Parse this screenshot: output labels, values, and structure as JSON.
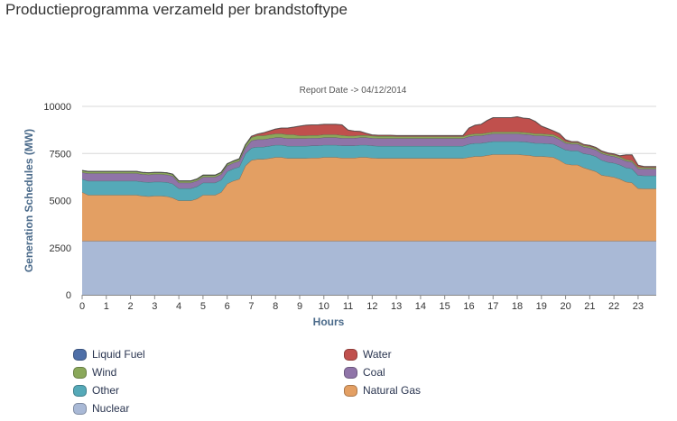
{
  "page": {
    "title": "Productieprogramma verzameld per brandstoftype"
  },
  "chart_data": {
    "type": "area",
    "stacked": true,
    "subtitle": "Report Date -> 04/12/2014",
    "xlabel": "Hours",
    "ylabel": "Generation Schedules (MW)",
    "ylim": [
      0,
      10000
    ],
    "xlim": [
      0,
      23.75
    ],
    "yticks": [
      0,
      2500,
      5000,
      7500,
      10000
    ],
    "ytick_labels": [
      "0",
      "2500",
      "5000",
      "7500",
      "10000"
    ],
    "xticks": [
      0,
      1,
      2,
      3,
      4,
      5,
      6,
      7,
      8,
      9,
      10,
      11,
      12,
      13,
      14,
      15,
      16,
      17,
      18,
      19,
      20,
      21,
      22,
      23
    ],
    "xtick_labels": [
      "0",
      "1",
      "2",
      "3",
      "4",
      "5",
      "6",
      "7",
      "8",
      "9",
      "10",
      "11",
      "12",
      "13",
      "14",
      "15",
      "16",
      "17",
      "18",
      "19",
      "20",
      "21",
      "22",
      "23"
    ],
    "x": [
      0,
      0.25,
      0.5,
      0.75,
      1,
      1.25,
      1.5,
      1.75,
      2,
      2.25,
      2.5,
      2.75,
      3,
      3.25,
      3.5,
      3.75,
      4,
      4.25,
      4.5,
      4.75,
      5,
      5.25,
      5.5,
      5.75,
      6,
      6.25,
      6.5,
      6.75,
      7,
      7.25,
      7.5,
      7.75,
      8,
      8.25,
      8.5,
      8.75,
      9,
      9.25,
      9.5,
      9.75,
      10,
      10.25,
      10.5,
      10.75,
      11,
      11.25,
      11.5,
      11.75,
      12,
      12.25,
      12.5,
      12.75,
      13,
      13.25,
      13.5,
      13.75,
      14,
      14.25,
      14.5,
      14.75,
      15,
      15.25,
      15.5,
      15.75,
      16,
      16.25,
      16.5,
      16.75,
      17,
      17.25,
      17.5,
      17.75,
      18,
      18.25,
      18.5,
      18.75,
      19,
      19.25,
      19.5,
      19.75,
      20,
      20.25,
      20.5,
      20.75,
      21,
      21.25,
      21.5,
      21.75,
      22,
      22.25,
      22.5,
      22.75,
      23,
      23.25,
      23.5,
      23.75
    ],
    "series": [
      {
        "name": "Nuclear",
        "color": "#a9b9d6",
        "values": [
          2850,
          2850,
          2850,
          2850,
          2850,
          2850,
          2850,
          2850,
          2850,
          2850,
          2850,
          2850,
          2850,
          2850,
          2850,
          2850,
          2850,
          2850,
          2850,
          2850,
          2850,
          2850,
          2850,
          2850,
          2850,
          2850,
          2850,
          2850,
          2850,
          2850,
          2850,
          2850,
          2850,
          2850,
          2850,
          2850,
          2850,
          2850,
          2850,
          2850,
          2850,
          2850,
          2850,
          2850,
          2850,
          2850,
          2850,
          2850,
          2850,
          2850,
          2850,
          2850,
          2850,
          2850,
          2850,
          2850,
          2850,
          2850,
          2850,
          2850,
          2850,
          2850,
          2850,
          2850,
          2850,
          2850,
          2850,
          2850,
          2850,
          2850,
          2850,
          2850,
          2850,
          2850,
          2850,
          2850,
          2850,
          2850,
          2850,
          2850,
          2850,
          2850,
          2850,
          2850,
          2850,
          2850,
          2850,
          2850,
          2850,
          2850,
          2850,
          2850,
          2850,
          2850,
          2850,
          2850
        ]
      },
      {
        "name": "Natural Gas",
        "color": "#e39f63",
        "values": [
          2600,
          2450,
          2450,
          2450,
          2450,
          2450,
          2450,
          2450,
          2450,
          2450,
          2400,
          2380,
          2400,
          2400,
          2380,
          2300,
          2150,
          2150,
          2150,
          2250,
          2450,
          2450,
          2450,
          2600,
          3050,
          3200,
          3300,
          4000,
          4300,
          4350,
          4350,
          4400,
          4450,
          4450,
          4400,
          4400,
          4400,
          4400,
          4420,
          4420,
          4450,
          4450,
          4450,
          4420,
          4420,
          4420,
          4450,
          4450,
          4420,
          4400,
          4400,
          4400,
          4400,
          4400,
          4400,
          4400,
          4400,
          4400,
          4400,
          4400,
          4400,
          4400,
          4400,
          4400,
          4450,
          4500,
          4500,
          4550,
          4600,
          4600,
          4600,
          4600,
          4600,
          4580,
          4550,
          4500,
          4500,
          4480,
          4450,
          4300,
          4100,
          4050,
          4050,
          3900,
          3800,
          3700,
          3500,
          3450,
          3400,
          3300,
          3150,
          3100,
          2800,
          2780,
          2780,
          2780
        ]
      },
      {
        "name": "Other",
        "color": "#55a9b8",
        "values": [
          700,
          750,
          750,
          750,
          750,
          750,
          750,
          750,
          750,
          750,
          750,
          750,
          750,
          750,
          750,
          750,
          650,
          650,
          650,
          650,
          650,
          650,
          650,
          650,
          650,
          650,
          650,
          650,
          650,
          650,
          650,
          650,
          650,
          650,
          650,
          650,
          650,
          650,
          650,
          650,
          650,
          650,
          650,
          650,
          650,
          650,
          650,
          650,
          650,
          650,
          650,
          650,
          650,
          650,
          650,
          650,
          650,
          650,
          650,
          650,
          650,
          650,
          650,
          650,
          700,
          700,
          700,
          700,
          700,
          700,
          700,
          700,
          700,
          700,
          700,
          700,
          700,
          700,
          700,
          700,
          750,
          750,
          750,
          750,
          800,
          800,
          800,
          750,
          750,
          750,
          750,
          750,
          700,
          700,
          700,
          700
        ]
      },
      {
        "name": "Coal",
        "color": "#8f74a8",
        "values": [
          350,
          400,
          400,
          400,
          400,
          400,
          400,
          400,
          400,
          400,
          400,
          400,
          400,
          400,
          400,
          400,
          300,
          300,
          300,
          300,
          300,
          300,
          300,
          300,
          300,
          300,
          300,
          300,
          380,
          400,
          400,
          400,
          400,
          400,
          400,
          400,
          400,
          400,
          400,
          400,
          400,
          400,
          400,
          400,
          400,
          400,
          400,
          400,
          400,
          400,
          400,
          400,
          400,
          400,
          400,
          400,
          400,
          400,
          400,
          400,
          400,
          400,
          400,
          400,
          400,
          400,
          400,
          400,
          400,
          400,
          400,
          400,
          400,
          400,
          400,
          400,
          400,
          400,
          400,
          400,
          350,
          350,
          350,
          350,
          350,
          350,
          350,
          350,
          350,
          350,
          350,
          350,
          350,
          350,
          350,
          350
        ]
      },
      {
        "name": "Wind",
        "color": "#8aa85a",
        "values": [
          100,
          100,
          100,
          100,
          100,
          100,
          100,
          100,
          100,
          100,
          100,
          100,
          100,
          100,
          100,
          100,
          100,
          100,
          100,
          100,
          100,
          100,
          100,
          100,
          100,
          100,
          120,
          150,
          180,
          200,
          200,
          200,
          200,
          200,
          200,
          200,
          150,
          150,
          150,
          150,
          150,
          150,
          150,
          150,
          120,
          120,
          120,
          120,
          120,
          120,
          120,
          120,
          100,
          100,
          100,
          100,
          100,
          100,
          100,
          100,
          100,
          100,
          100,
          100,
          100,
          100,
          100,
          100,
          100,
          100,
          100,
          100,
          100,
          100,
          100,
          100,
          100,
          100,
          100,
          100,
          80,
          80,
          80,
          80,
          80,
          80,
          80,
          80,
          80,
          80,
          80,
          80,
          80,
          80,
          80,
          80
        ]
      },
      {
        "name": "Water",
        "color": "#c0504d",
        "values": [
          0,
          0,
          0,
          0,
          0,
          0,
          0,
          0,
          0,
          0,
          0,
          0,
          0,
          0,
          0,
          0,
          0,
          0,
          0,
          0,
          0,
          0,
          0,
          0,
          0,
          0,
          0,
          0,
          50,
          80,
          150,
          200,
          250,
          300,
          350,
          400,
          500,
          550,
          550,
          550,
          550,
          550,
          550,
          550,
          300,
          250,
          200,
          100,
          50,
          50,
          50,
          50,
          50,
          50,
          50,
          50,
          50,
          50,
          50,
          50,
          50,
          50,
          50,
          50,
          350,
          450,
          500,
          650,
          750,
          750,
          750,
          750,
          800,
          750,
          750,
          650,
          400,
          300,
          200,
          200,
          100,
          50,
          50,
          50,
          50,
          50,
          50,
          50,
          50,
          50,
          250,
          300,
          100,
          50,
          50,
          50
        ]
      },
      {
        "name": "Liquid Fuel",
        "color": "#4e6fa8",
        "values": [
          0,
          0,
          0,
          0,
          0,
          0,
          0,
          0,
          0,
          0,
          0,
          0,
          0,
          0,
          0,
          0,
          0,
          0,
          0,
          0,
          0,
          0,
          0,
          0,
          0,
          0,
          0,
          0,
          0,
          0,
          0,
          0,
          0,
          0,
          0,
          0,
          0,
          0,
          0,
          0,
          0,
          0,
          0,
          0,
          0,
          0,
          0,
          0,
          0,
          0,
          0,
          0,
          0,
          0,
          0,
          0,
          0,
          0,
          0,
          0,
          0,
          0,
          0,
          0,
          0,
          0,
          0,
          0,
          0,
          0,
          0,
          0,
          0,
          0,
          0,
          0,
          0,
          0,
          0,
          0,
          0,
          0,
          0,
          0,
          0,
          0,
          0,
          0,
          0,
          0,
          0,
          0,
          0,
          0,
          0,
          0
        ]
      }
    ],
    "legend": [
      {
        "name": "Liquid Fuel",
        "color": "#4e6fa8"
      },
      {
        "name": "Water",
        "color": "#c0504d"
      },
      {
        "name": "Wind",
        "color": "#8aa85a"
      },
      {
        "name": "Coal",
        "color": "#8f74a8"
      },
      {
        "name": "Other",
        "color": "#55a9b8"
      },
      {
        "name": "Natural Gas",
        "color": "#e39f63"
      },
      {
        "name": "Nuclear",
        "color": "#a9b9d6"
      }
    ]
  }
}
